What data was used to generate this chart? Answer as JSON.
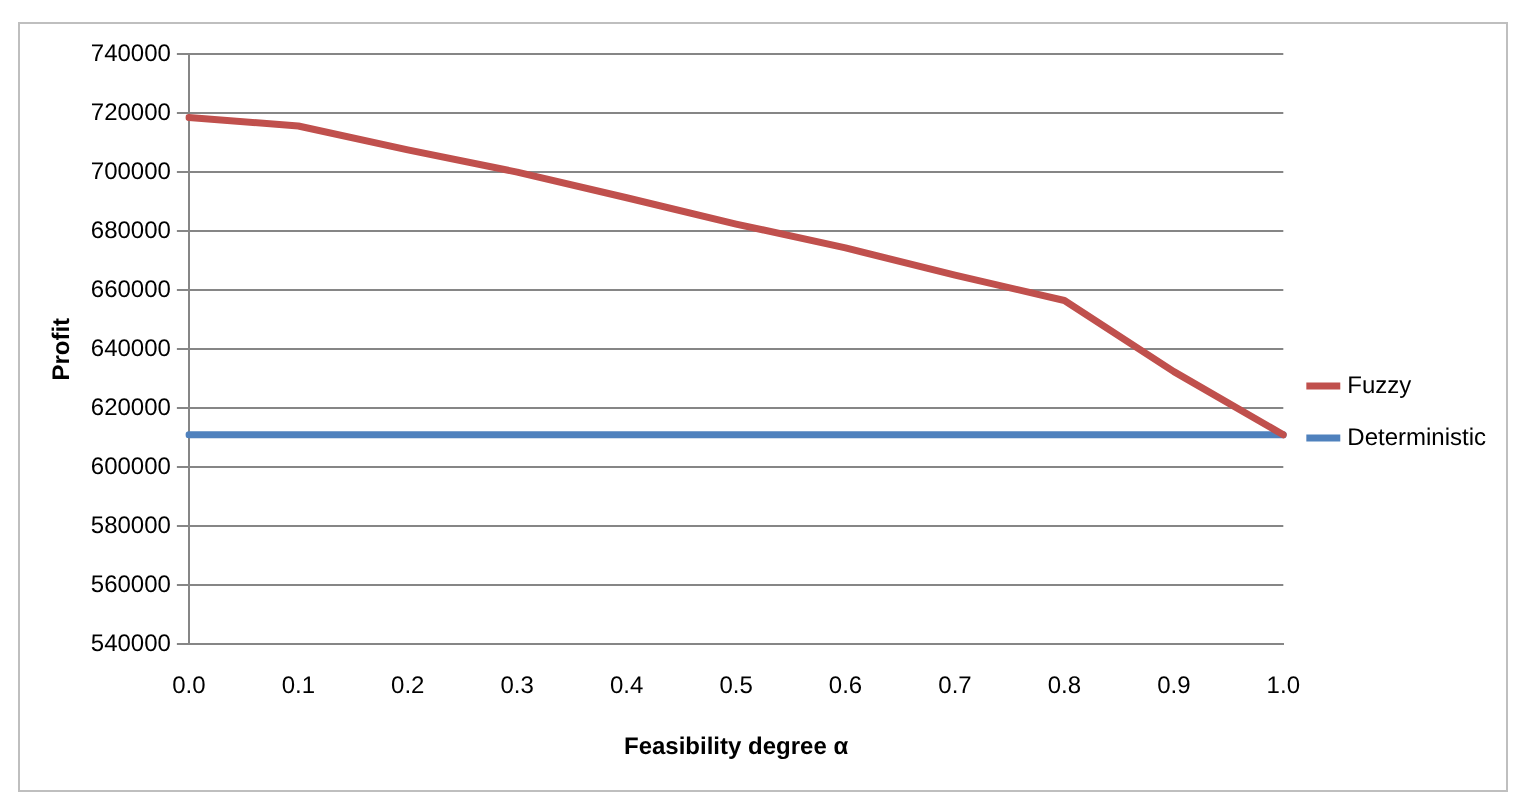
{
  "chart_data": {
    "type": "line",
    "xlabel": "Feasibility degree α",
    "ylabel": "Profit",
    "categories": [
      "0.0",
      "0.1",
      "0.2",
      "0.3",
      "0.4",
      "0.5",
      "0.6",
      "0.7",
      "0.8",
      "0.9",
      "1.0"
    ],
    "series": [
      {
        "name": "Fuzzy",
        "color": "#c0504d",
        "values": [
          718500,
          715600,
          707500,
          700000,
          691300,
          682400,
          674300,
          665100,
          656500,
          632400,
          611000
        ]
      },
      {
        "name": "Deterministic",
        "color": "#4f81bd",
        "values": [
          611000,
          611000,
          611000,
          611000,
          611000,
          611000,
          611000,
          611000,
          611000,
          611000,
          611000
        ]
      }
    ],
    "ylim": [
      540000,
      740000
    ],
    "yticks": [
      540000,
      560000,
      580000,
      600000,
      620000,
      640000,
      660000,
      680000,
      700000,
      720000,
      740000
    ],
    "grid": "y",
    "legend": "right",
    "marker": "none",
    "line_style": "solid"
  }
}
